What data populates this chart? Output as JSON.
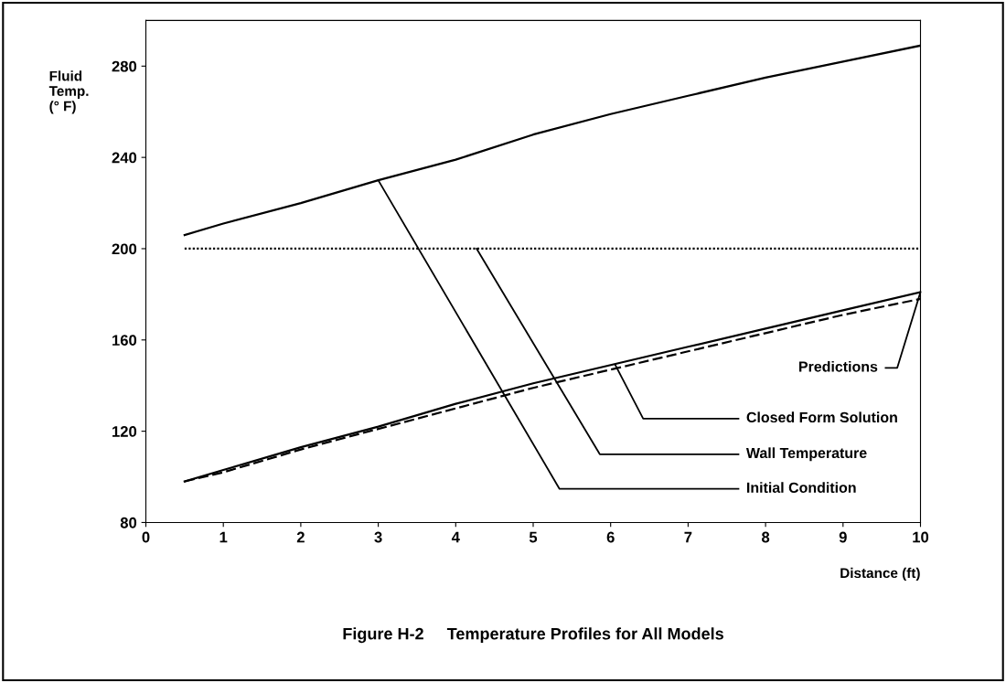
{
  "chart_data": {
    "type": "line",
    "title": "Figure H-2     Temperature Profiles for All Models",
    "xlabel": "Distance (ft)",
    "ylabel": "Fluid\nTemp.\n(° F)",
    "xlim": [
      0,
      10
    ],
    "ylim": [
      80,
      300
    ],
    "xticks": [
      0,
      1,
      2,
      3,
      4,
      5,
      6,
      7,
      8,
      9,
      10
    ],
    "yticks": [
      80,
      120,
      160,
      200,
      240,
      280
    ],
    "grid": false,
    "legend": false,
    "marker": "none",
    "series": [
      {
        "color": "#000000",
        "line_style": "solid",
        "x": [
          0.5,
          1,
          2,
          3,
          4,
          5,
          6,
          7,
          8,
          9,
          10
        ],
        "values": [
          206,
          211,
          220,
          230,
          239,
          250,
          259,
          267,
          275,
          282,
          289
        ]
      },
      {
        "color": "#000000",
        "line_style": "dotted",
        "x": [
          0.5,
          10
        ],
        "values": [
          200,
          200
        ]
      },
      {
        "color": "#000000",
        "line_style": "solid",
        "x": [
          0.5,
          1,
          2,
          3,
          4,
          5,
          6,
          7,
          8,
          9,
          10
        ],
        "values": [
          98,
          103,
          113,
          122,
          132,
          141,
          149,
          157,
          165,
          173,
          181
        ]
      },
      {
        "color": "#000000",
        "line_style": "dashed",
        "x": [
          0.5,
          1,
          2,
          3,
          4,
          5,
          6,
          7,
          8,
          9,
          10
        ],
        "values": [
          98,
          102,
          112,
          121,
          130,
          139,
          147,
          155,
          163,
          171,
          178
        ]
      }
    ],
    "annotations": [
      {
        "text": "Predictions",
        "x": 10,
        "y": 181
      },
      {
        "text": "Closed Form Solution",
        "x": 6.06,
        "y": 149
      },
      {
        "text": "Wall Temperature",
        "x": 4.27,
        "y": 200
      },
      {
        "text": "Initial Condition",
        "x": 3,
        "y": 230
      }
    ]
  }
}
